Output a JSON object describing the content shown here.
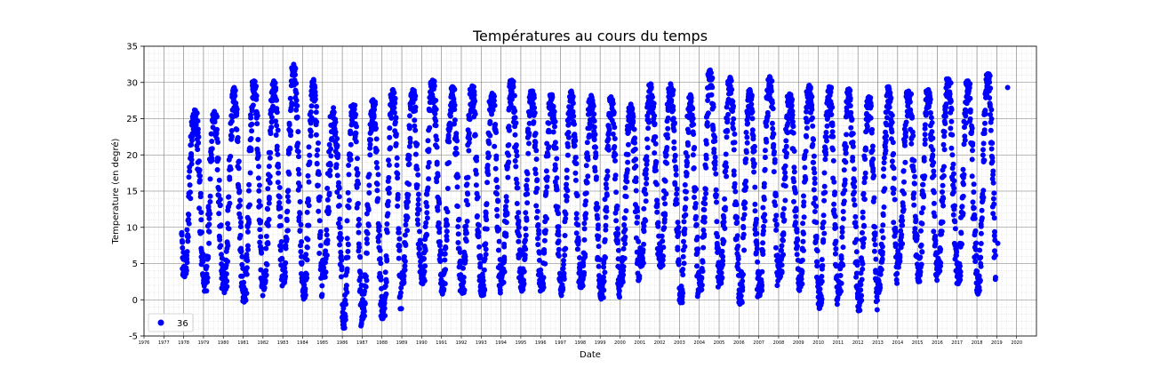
{
  "chart_data": {
    "type": "scatter",
    "title": "Températures au cours du temps",
    "xlabel": "Date",
    "ylabel": "Temperature (en degré)",
    "xlim": [
      1976,
      2021
    ],
    "ylim": [
      -5,
      35
    ],
    "yticks": [
      -5,
      0,
      5,
      10,
      15,
      20,
      25,
      30,
      35
    ],
    "xticks": [
      "1976",
      "1977",
      "1978",
      "1979",
      "1980",
      "1981",
      "1982",
      "1983",
      "1984",
      "1985",
      "1986",
      "1987",
      "1988",
      "1989",
      "1990",
      "1991",
      "1992",
      "1993",
      "1994",
      "1995",
      "1996",
      "1997",
      "1998",
      "1999",
      "2000",
      "2001",
      "2002",
      "2003",
      "2004",
      "2005",
      "2006",
      "2007",
      "2008",
      "2009",
      "2010",
      "2011",
      "2012",
      "2013",
      "2014",
      "2015",
      "2016",
      "2017",
      "2018",
      "2019",
      "2020"
    ],
    "grid": "major and minor",
    "legend_position": "lower-left",
    "series": [
      {
        "name": "36",
        "color": "#0000ff",
        "marker": "circle",
        "x_range": [
          1977.9,
          2018.95
        ],
        "annual_cycle": {
          "winter_low_typical": 3,
          "summer_high_typical": 27,
          "band_spread": 10
        },
        "yearly_extremes": [
          {
            "year": 1978,
            "min": 3.2,
            "max": 26.2
          },
          {
            "year": 1979,
            "min": 1.2,
            "max": 26.0
          },
          {
            "year": 1980,
            "min": 1.0,
            "max": 29.3
          },
          {
            "year": 1981,
            "min": -0.3,
            "max": 30.2
          },
          {
            "year": 1982,
            "min": 1.4,
            "max": 30.2
          },
          {
            "year": 1983,
            "min": 2.3,
            "max": 32.5
          },
          {
            "year": 1984,
            "min": 0.1,
            "max": 30.4
          },
          {
            "year": 1985,
            "min": 3.1,
            "max": 26.5
          },
          {
            "year": 1986,
            "min": -3.9,
            "max": 26.9
          },
          {
            "year": 1987,
            "min": -2.6,
            "max": 27.6
          },
          {
            "year": 1988,
            "min": -2.6,
            "max": 29.0
          },
          {
            "year": 1989,
            "min": 2.2,
            "max": 29.0
          },
          {
            "year": 1990,
            "min": 2.2,
            "max": 30.3
          },
          {
            "year": 1991,
            "min": 0.8,
            "max": 29.4
          },
          {
            "year": 1992,
            "min": 0.9,
            "max": 29.5
          },
          {
            "year": 1993,
            "min": 0.6,
            "max": 28.5
          },
          {
            "year": 1994,
            "min": 2.2,
            "max": 30.3
          },
          {
            "year": 1995,
            "min": 1.2,
            "max": 28.8
          },
          {
            "year": 1996,
            "min": 1.4,
            "max": 28.3
          },
          {
            "year": 1997,
            "min": 0.6,
            "max": 28.8
          },
          {
            "year": 1998,
            "min": 1.7,
            "max": 28.2
          },
          {
            "year": 1999,
            "min": 0.1,
            "max": 28.0
          },
          {
            "year": 2000,
            "min": 2.0,
            "max": 27.0
          },
          {
            "year": 2001,
            "min": 4.6,
            "max": 29.8
          },
          {
            "year": 2002,
            "min": 4.5,
            "max": 29.8
          },
          {
            "year": 2003,
            "min": -0.4,
            "max": 28.3
          },
          {
            "year": 2004,
            "min": 1.3,
            "max": 31.7
          },
          {
            "year": 2005,
            "min": 2.2,
            "max": 30.7
          },
          {
            "year": 2006,
            "min": -0.6,
            "max": 29.0
          },
          {
            "year": 2007,
            "min": 0.6,
            "max": 30.8
          },
          {
            "year": 2008,
            "min": 3.0,
            "max": 28.4
          },
          {
            "year": 2009,
            "min": 1.3,
            "max": 29.6
          },
          {
            "year": 2010,
            "min": -1.2,
            "max": 29.4
          },
          {
            "year": 2011,
            "min": 0.8,
            "max": 29.1
          },
          {
            "year": 2012,
            "min": -1.5,
            "max": 28.0
          },
          {
            "year": 2013,
            "min": 1.0,
            "max": 29.4
          },
          {
            "year": 2014,
            "min": 4.5,
            "max": 28.8
          },
          {
            "year": 2015,
            "min": 2.5,
            "max": 29.0
          },
          {
            "year": 2016,
            "min": 3.7,
            "max": 30.5
          },
          {
            "year": 2017,
            "min": 2.2,
            "max": 30.2
          },
          {
            "year": 2018,
            "min": 0.8,
            "max": 31.2
          },
          {
            "year": 2019,
            "min": 7.8,
            "max": 29.3
          }
        ]
      }
    ]
  }
}
